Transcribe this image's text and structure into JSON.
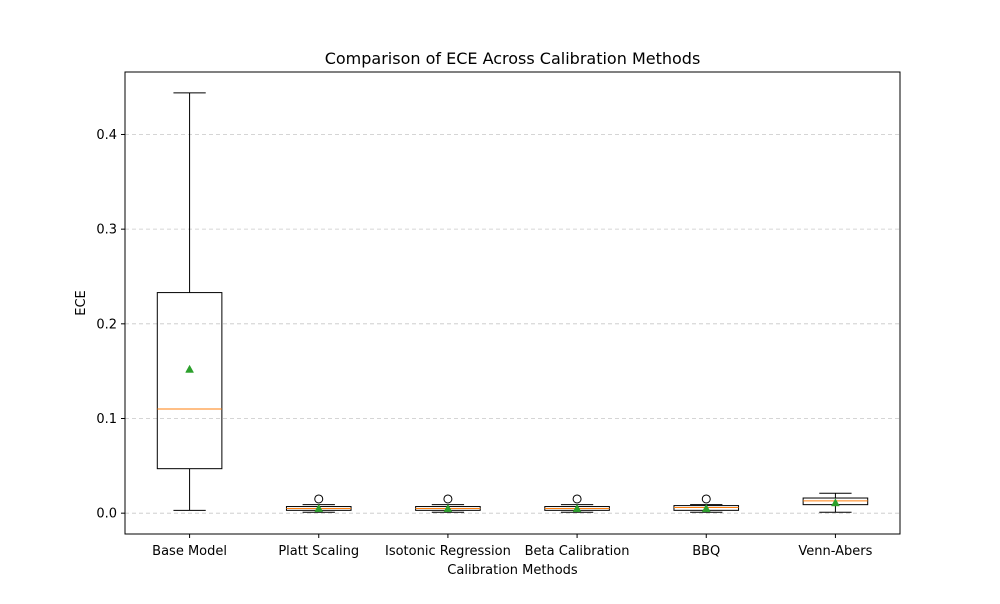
{
  "chart_data": {
    "type": "box",
    "title": "Comparison of ECE Across Calibration Methods",
    "xlabel": "Calibration Methods",
    "ylabel": "ECE",
    "ylim": [
      -0.022,
      0.466
    ],
    "yticks": [
      0.0,
      0.1,
      0.2,
      0.3,
      0.4
    ],
    "ytick_labels": [
      "0.0",
      "0.1",
      "0.2",
      "0.3",
      "0.4"
    ],
    "grid": "y-dashed",
    "categories": [
      "Base Model",
      "Platt Scaling",
      "Isotonic Regression",
      "Beta Calibration",
      "BBQ",
      "Venn-Abers"
    ],
    "boxes": [
      {
        "whisker_low": 0.003,
        "q1": 0.047,
        "median": 0.11,
        "q3": 0.233,
        "whisker_high": 0.444,
        "mean": 0.152,
        "outliers": []
      },
      {
        "whisker_low": 0.001,
        "q1": 0.003,
        "median": 0.005,
        "q3": 0.007,
        "whisker_high": 0.009,
        "mean": 0.005,
        "outliers": [
          0.015
        ]
      },
      {
        "whisker_low": 0.001,
        "q1": 0.003,
        "median": 0.005,
        "q3": 0.007,
        "whisker_high": 0.009,
        "mean": 0.005,
        "outliers": [
          0.015
        ]
      },
      {
        "whisker_low": 0.001,
        "q1": 0.003,
        "median": 0.005,
        "q3": 0.007,
        "whisker_high": 0.009,
        "mean": 0.005,
        "outliers": [
          0.015
        ]
      },
      {
        "whisker_low": 0.001,
        "q1": 0.003,
        "median": 0.006,
        "q3": 0.008,
        "whisker_high": 0.009,
        "mean": 0.005,
        "outliers": [
          0.015
        ]
      },
      {
        "whisker_low": 0.001,
        "q1": 0.009,
        "median": 0.013,
        "q3": 0.016,
        "whisker_high": 0.021,
        "mean": 0.011,
        "outliers": []
      }
    ],
    "colors": {
      "box_edge": "#000000",
      "median": "#ff7f0e",
      "mean_marker": "#2ca02c",
      "grid": "#c8c8c8"
    }
  }
}
